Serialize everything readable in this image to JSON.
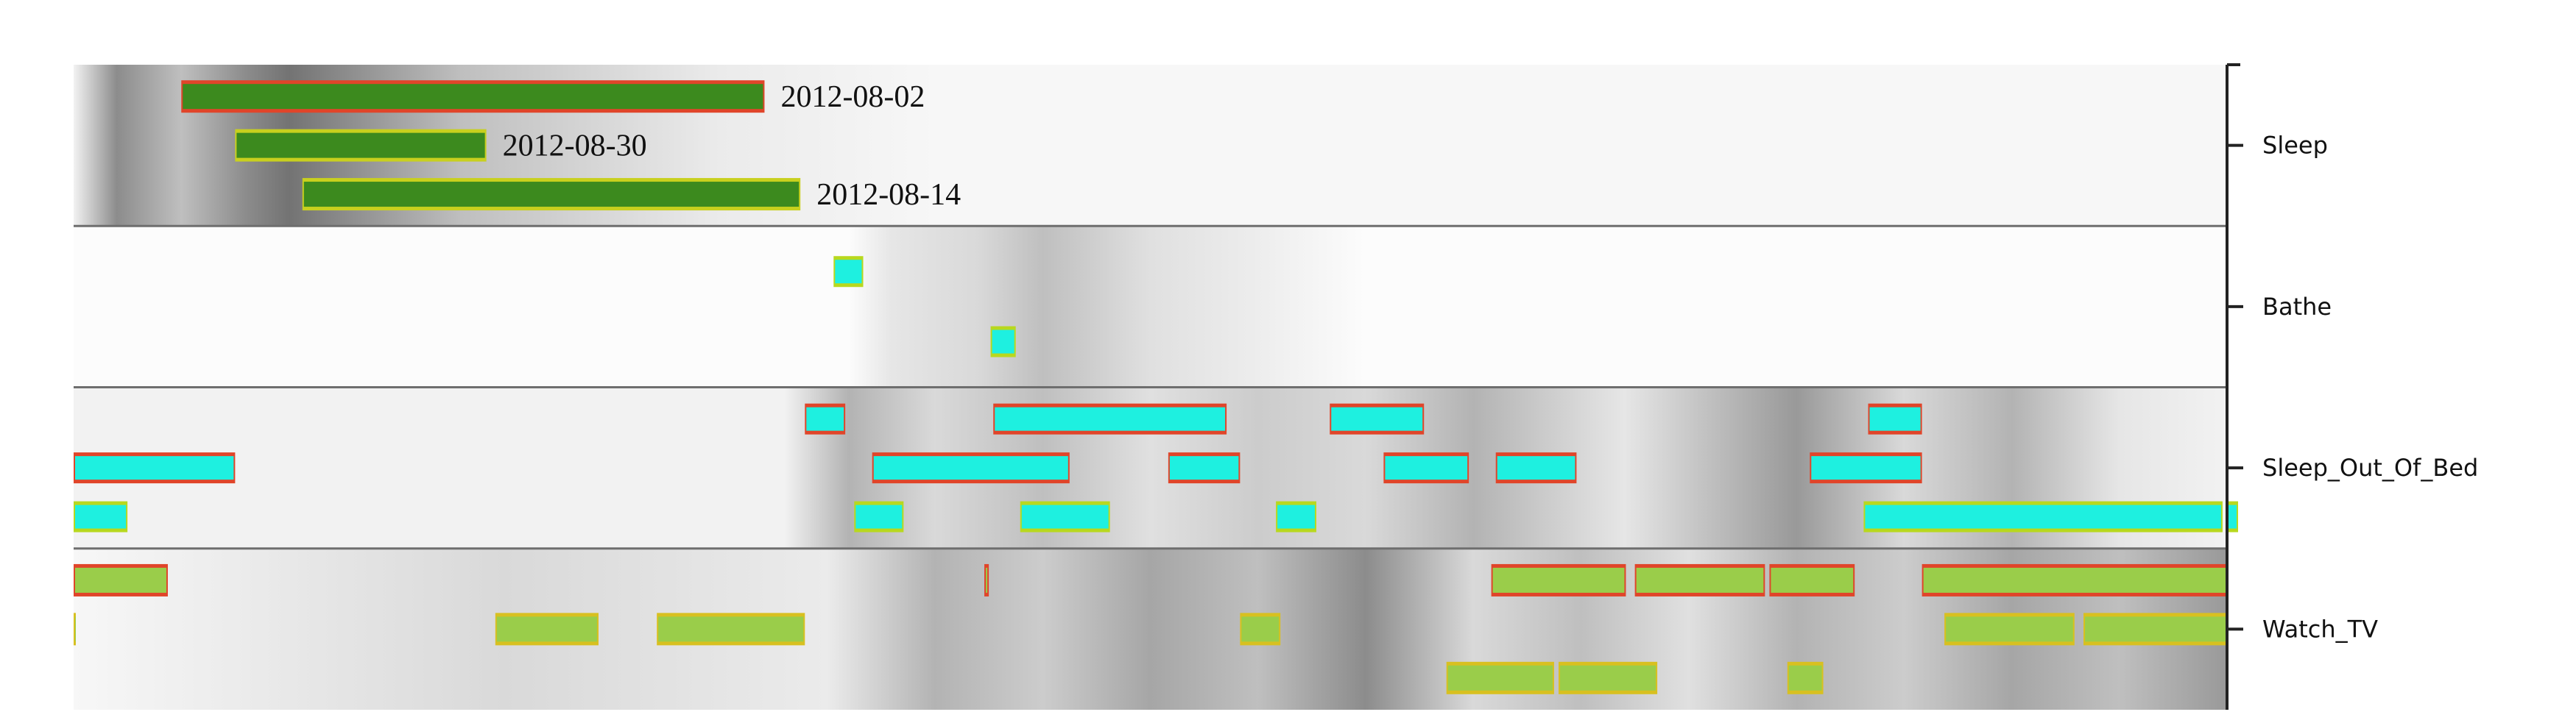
{
  "chart_data": {
    "type": "timeline",
    "x_range_hours": [
      0,
      24
    ],
    "legend": "none",
    "grid": false,
    "colors": {
      "sleep_fill": "#3c8a1e",
      "sleep_border_red": "#e0452a",
      "sleep_border_yellow": "#c8d01e",
      "short_fill": "#1ef0e0",
      "short_border_red": "#e0452a",
      "short_border_yellow": "#b8d81e",
      "tv_fill": "#9acd4a",
      "tv_border_red": "#e0452a",
      "tv_border_yellow": "#d8c020",
      "panel_border": "#6e6e6e",
      "axis": "#222222"
    },
    "activities": [
      {
        "name": "Sleep",
        "rows": [
          {
            "date_label": "2012-08-02",
            "border": "red",
            "intervals": [
              [
                1.2,
                7.7
              ]
            ]
          },
          {
            "date_label": "2012-08-30",
            "border": "yellow",
            "intervals": [
              [
                1.8,
                4.6
              ]
            ]
          },
          {
            "date_label": "2012-08-14",
            "border": "yellow",
            "intervals": [
              [
                2.55,
                8.1
              ]
            ]
          }
        ]
      },
      {
        "name": "Bathe",
        "rows": [
          {
            "border": "yellow",
            "intervals": [
              [
                8.47,
                8.8
              ]
            ]
          },
          {
            "border": "yellow",
            "intervals": [
              [
                10.22,
                10.5
              ]
            ]
          }
        ]
      },
      {
        "name": "Sleep_Out_Of_Bed",
        "rows": [
          {
            "border": "red",
            "intervals": [
              [
                8.15,
                8.6
              ],
              [
                10.25,
                12.85
              ],
              [
                14.0,
                15.05
              ],
              [
                20.0,
                20.6
              ]
            ]
          },
          {
            "border": "red",
            "intervals": [
              [
                0.0,
                1.8
              ],
              [
                8.9,
                11.1
              ],
              [
                12.2,
                13.0
              ],
              [
                14.6,
                15.55
              ],
              [
                15.85,
                16.75
              ],
              [
                19.35,
                20.6
              ]
            ]
          },
          {
            "border": "yellow",
            "intervals": [
              [
                0.0,
                0.6
              ],
              [
                8.7,
                9.25
              ],
              [
                10.55,
                11.55
              ],
              [
                13.4,
                13.85
              ],
              [
                19.95,
                23.95
              ],
              [
                24.0,
                24.15
              ]
            ]
          }
        ]
      },
      {
        "name": "Watch_TV",
        "rows": [
          {
            "border": "red",
            "intervals": [
              [
                0.0,
                1.05
              ],
              [
                10.15,
                10.2
              ],
              [
                15.8,
                17.3
              ],
              [
                17.4,
                18.85
              ],
              [
                18.9,
                19.85
              ],
              [
                20.6,
                24.0
              ]
            ]
          },
          {
            "border": "yellow",
            "intervals": [
              [
                0.0,
                0.02
              ],
              [
                4.7,
                5.85
              ],
              [
                6.5,
                8.15
              ],
              [
                13.0,
                13.45
              ],
              [
                20.85,
                22.3
              ],
              [
                22.4,
                24.0
              ]
            ]
          },
          {
            "border": "yellow",
            "intervals": [
              [
                15.3,
                16.5
              ],
              [
                16.55,
                17.65
              ],
              [
                19.1,
                19.5
              ]
            ]
          }
        ]
      }
    ]
  }
}
